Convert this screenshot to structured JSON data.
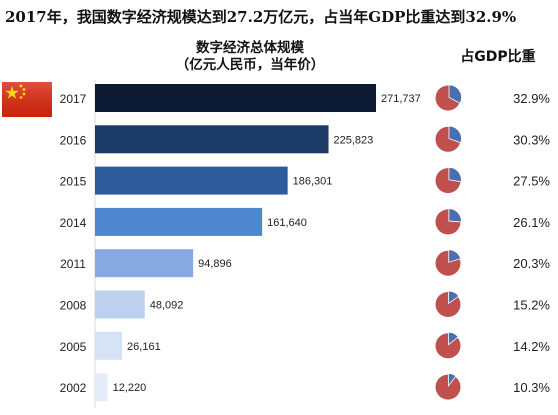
{
  "headline": "2017年，我国数字经济规模达到27.2万亿元，占当年GDP比重达到32.9%",
  "chart_title_line1": "数字经济总体规模",
  "chart_title_line2": "（亿元人民币，当年价）",
  "share_title": "占GDP比重",
  "colors": {
    "bars": [
      "#0c1a33",
      "#1b3a66",
      "#2e5b9c",
      "#4e86cf",
      "#86a9df",
      "#bdd0ee",
      "#d6e3f5",
      "#e4ecf8"
    ],
    "pie_share": "#4a6fb0",
    "pie_rest": "#c0504d",
    "flag_red": "#de2910",
    "flag_star": "#ffde00"
  },
  "chart_data": {
    "type": "bar",
    "orientation": "horizontal",
    "categories": [
      "2017",
      "2016",
      "2015",
      "2014",
      "2011",
      "2008",
      "2005",
      "2002"
    ],
    "series": [
      {
        "values": [
          271737,
          225823,
          186301,
          161640,
          94896,
          48092,
          26161,
          12220
        ]
      }
    ],
    "value_labels": [
      "271,737",
      "225,823",
      "186,301",
      "161,640",
      "94,896",
      "48,092",
      "26,161",
      "12,220"
    ],
    "gdp_share": [
      32.9,
      30.3,
      27.5,
      26.1,
      20.3,
      15.2,
      14.2,
      10.3
    ],
    "gdp_share_labels": [
      "32.9%",
      "30.3%",
      "27.5%",
      "26.1%",
      "20.3%",
      "15.2%",
      "14.2%",
      "10.3%"
    ],
    "secondary_type": "pie",
    "grid": false,
    "legend": "none"
  }
}
